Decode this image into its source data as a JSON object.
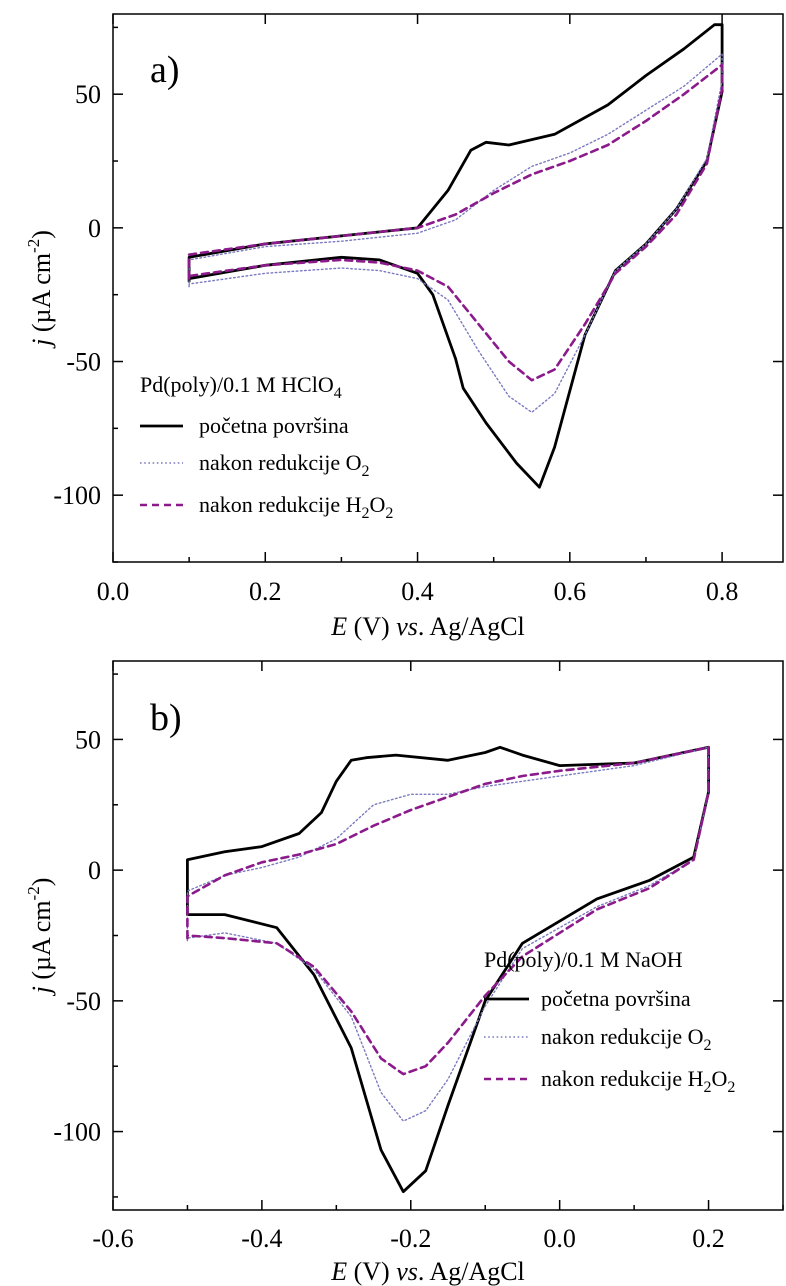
{
  "figure": {
    "panels": [
      {
        "panel_label": "a)",
        "legend_title": "Pd(poly)/0.1 M HClO",
        "legend_title_sub": "4",
        "legend": [
          {
            "label": "početna površina",
            "sub": "",
            "tail": "",
            "sub2": ""
          },
          {
            "label": "nakon redukcije O",
            "sub": "2",
            "tail": "",
            "sub2": ""
          },
          {
            "label": "nakon redukcije H",
            "sub": "2",
            "tail": "O",
            "sub2": "2"
          }
        ],
        "xlabel": {
          "e": "E",
          "rest": " (V) ",
          "vs": "vs",
          "tail": ". Ag/AgCl"
        },
        "ylabel": {
          "j": "j",
          "rest": " (µA cm",
          "sup": "-2",
          "close": ")"
        },
        "xticks": [
          "0.0",
          "0.2",
          "0.4",
          "0.6",
          "0.8"
        ],
        "yticks": [
          "50",
          "0",
          "-50",
          "-100"
        ]
      },
      {
        "panel_label": "b)",
        "legend_title": "Pd(poly)/0.1 M NaOH",
        "legend_title_sub": "",
        "legend": [
          {
            "label": "početna površina",
            "sub": "",
            "tail": "",
            "sub2": ""
          },
          {
            "label": "nakon redukcije O",
            "sub": "2",
            "tail": "",
            "sub2": ""
          },
          {
            "label": "nakon redukcije H",
            "sub": "2",
            "tail": "O",
            "sub2": "2"
          }
        ],
        "xlabel": {
          "e": "E",
          "rest": " (V) ",
          "vs": "vs",
          "tail": ". Ag/AgCl"
        },
        "ylabel": {
          "j": "j",
          "rest": " (µA cm",
          "sup": "-2",
          "close": ")"
        },
        "xticks": [
          "-0.6",
          "-0.4",
          "-0.2",
          "0.0",
          "0.2"
        ],
        "yticks": [
          "50",
          "0",
          "-50",
          "-100"
        ]
      }
    ]
  },
  "chart_data": [
    {
      "type": "line",
      "title": "",
      "xlabel": "E (V) vs. Ag/AgCl",
      "ylabel": "j (µA cm-2)",
      "xlim": [
        0.0,
        0.88
      ],
      "ylim": [
        -125,
        80
      ],
      "xticks": [
        0.0,
        0.2,
        0.4,
        0.6,
        0.8
      ],
      "yticks": [
        50,
        0,
        -50,
        -100
      ],
      "grid": false,
      "legend_position": "lower-left",
      "series": [
        {
          "name": "početna površina",
          "color": "#000000",
          "style": "solid",
          "x": [
            0.1,
            0.1,
            0.2,
            0.3,
            0.4,
            0.44,
            0.47,
            0.49,
            0.52,
            0.58,
            0.65,
            0.7,
            0.75,
            0.79,
            0.8,
            0.8,
            0.78,
            0.74,
            0.7,
            0.66,
            0.62,
            0.58,
            0.56,
            0.53,
            0.49,
            0.46,
            0.45,
            0.42,
            0.4,
            0.35,
            0.3,
            0.2,
            0.1
          ],
          "y": [
            -20,
            -11,
            -6,
            -3,
            0,
            14,
            29,
            32,
            31,
            35,
            46,
            57,
            67,
            76,
            76,
            51,
            25,
            7,
            -6,
            -16,
            -40,
            -82,
            -97,
            -88,
            -73,
            -60,
            -49,
            -25,
            -17,
            -12,
            -11,
            -14,
            -19
          ]
        },
        {
          "name": "nakon redukcije O2",
          "color": "#7a7ac0",
          "style": "dotted",
          "x": [
            0.1,
            0.1,
            0.2,
            0.3,
            0.4,
            0.45,
            0.5,
            0.55,
            0.6,
            0.65,
            0.7,
            0.75,
            0.8,
            0.8,
            0.78,
            0.74,
            0.7,
            0.66,
            0.62,
            0.58,
            0.55,
            0.52,
            0.48,
            0.44,
            0.4,
            0.35,
            0.3,
            0.2,
            0.1
          ],
          "y": [
            -22,
            -12,
            -7,
            -5,
            -2,
            3,
            14,
            23,
            28,
            35,
            44,
            53,
            65,
            55,
            26,
            7,
            -6,
            -16,
            -40,
            -62,
            -69,
            -63,
            -46,
            -27,
            -19,
            -16,
            -15,
            -17,
            -21
          ]
        },
        {
          "name": "nakon redukcije H2O2",
          "color": "#8b1a8b",
          "style": "dashed",
          "x": [
            0.1,
            0.1,
            0.2,
            0.3,
            0.4,
            0.45,
            0.5,
            0.55,
            0.6,
            0.65,
            0.7,
            0.75,
            0.8,
            0.8,
            0.78,
            0.74,
            0.7,
            0.66,
            0.62,
            0.58,
            0.55,
            0.52,
            0.48,
            0.44,
            0.4,
            0.35,
            0.3,
            0.2,
            0.1
          ],
          "y": [
            -19,
            -10,
            -6,
            -3,
            0,
            5,
            13,
            20,
            25,
            31,
            40,
            50,
            61,
            52,
            24,
            5,
            -7,
            -17,
            -36,
            -53,
            -57,
            -50,
            -36,
            -22,
            -16,
            -13,
            -12,
            -14,
            -18
          ]
        }
      ]
    },
    {
      "type": "line",
      "title": "",
      "xlabel": "E (V) vs. Ag/AgCl",
      "ylabel": "j (µA cm-2)",
      "xlim": [
        -0.6,
        0.3
      ],
      "ylim": [
        -130,
        80
      ],
      "xticks": [
        -0.6,
        -0.4,
        -0.2,
        0.0,
        0.2
      ],
      "yticks": [
        50,
        0,
        -50,
        -100
      ],
      "grid": false,
      "legend_position": "lower-right",
      "series": [
        {
          "name": "početna površina",
          "color": "#000000",
          "style": "solid",
          "x": [
            -0.5,
            -0.5,
            -0.45,
            -0.4,
            -0.35,
            -0.32,
            -0.3,
            -0.28,
            -0.26,
            -0.22,
            -0.15,
            -0.1,
            -0.08,
            -0.05,
            0.0,
            0.1,
            0.2,
            0.2,
            0.18,
            0.12,
            0.05,
            -0.05,
            -0.1,
            -0.15,
            -0.18,
            -0.21,
            -0.24,
            -0.28,
            -0.33,
            -0.38,
            -0.45,
            -0.5
          ],
          "y": [
            -17,
            4,
            7,
            9,
            14,
            22,
            34,
            42,
            43,
            44,
            42,
            45,
            47,
            44,
            40,
            41,
            47,
            30,
            5,
            -4,
            -11,
            -28,
            -50,
            -90,
            -115,
            -123,
            -107,
            -68,
            -40,
            -22,
            -17,
            -17
          ]
        },
        {
          "name": "nakon redukcije O2",
          "color": "#7a7ac0",
          "style": "dotted",
          "x": [
            -0.5,
            -0.5,
            -0.45,
            -0.4,
            -0.35,
            -0.3,
            -0.25,
            -0.2,
            -0.15,
            -0.1,
            -0.05,
            0.0,
            0.1,
            0.2,
            0.2,
            0.18,
            0.12,
            0.05,
            -0.05,
            -0.1,
            -0.15,
            -0.18,
            -0.21,
            -0.24,
            -0.28,
            -0.33,
            -0.38,
            -0.45,
            -0.5
          ],
          "y": [
            -27,
            -8,
            -2,
            1,
            5,
            12,
            25,
            29,
            29,
            32,
            34,
            36,
            40,
            47,
            30,
            4,
            -6,
            -14,
            -30,
            -52,
            -80,
            -92,
            -96,
            -85,
            -56,
            -38,
            -28,
            -24,
            -26
          ]
        },
        {
          "name": "nakon redukcije H2O2",
          "color": "#8b1a8b",
          "style": "dashed",
          "x": [
            -0.5,
            -0.5,
            -0.45,
            -0.4,
            -0.35,
            -0.3,
            -0.25,
            -0.2,
            -0.15,
            -0.1,
            -0.05,
            0.0,
            0.1,
            0.2,
            0.2,
            0.18,
            0.12,
            0.05,
            -0.05,
            -0.1,
            -0.15,
            -0.18,
            -0.21,
            -0.24,
            -0.28,
            -0.33,
            -0.38,
            -0.45,
            -0.5
          ],
          "y": [
            -26,
            -10,
            -2,
            3,
            6,
            10,
            17,
            23,
            28,
            33,
            36,
            38,
            41,
            47,
            30,
            4,
            -7,
            -15,
            -33,
            -48,
            -66,
            -75,
            -78,
            -72,
            -54,
            -37,
            -28,
            -26,
            -25
          ]
        }
      ]
    }
  ]
}
